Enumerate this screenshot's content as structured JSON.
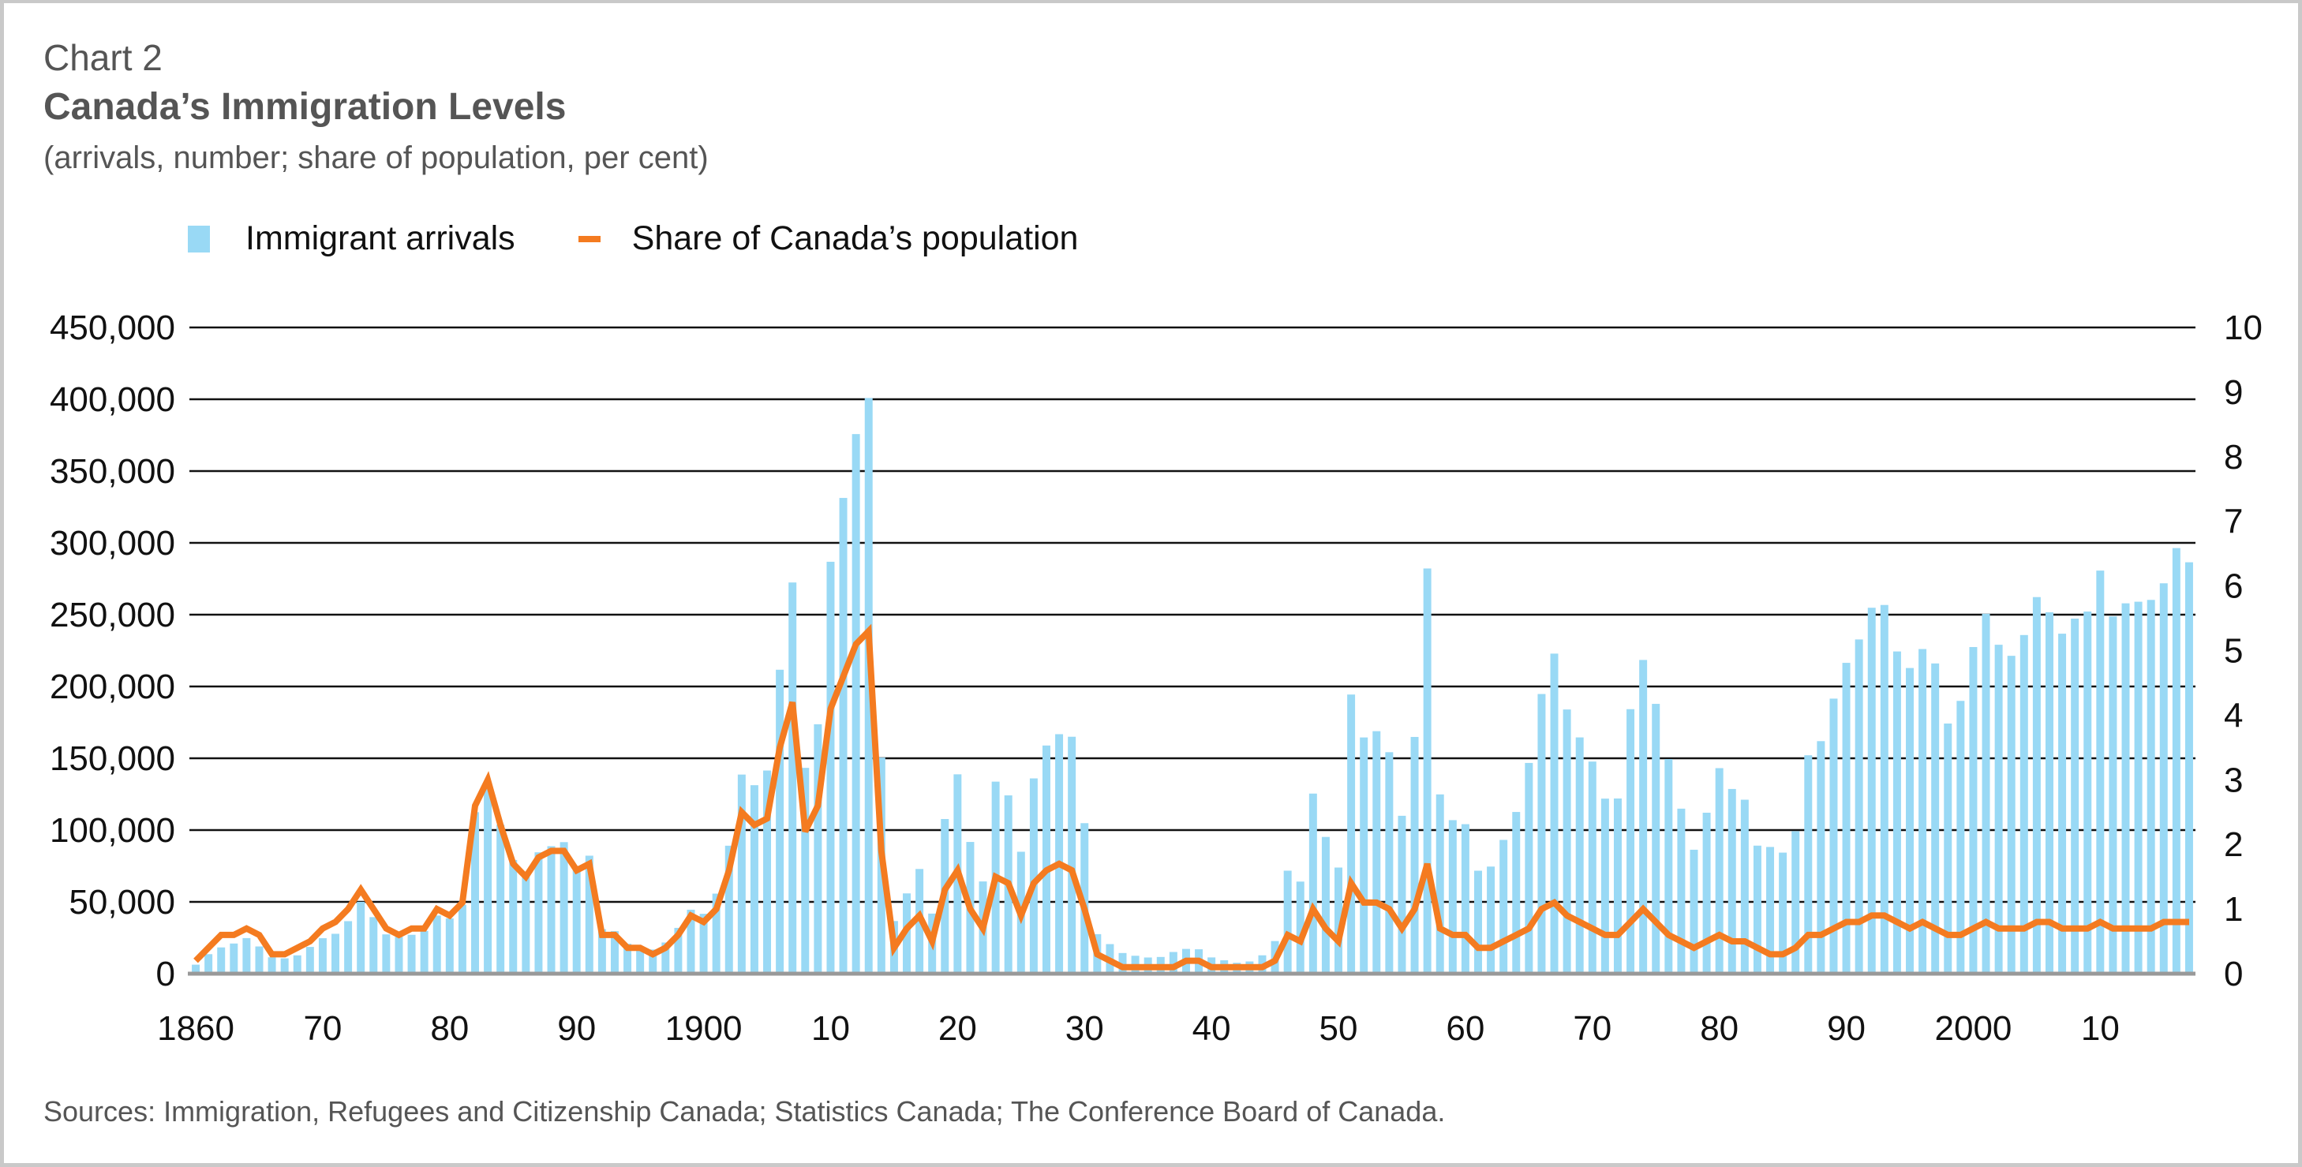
{
  "header": {
    "chart_number": "Chart 2",
    "title": "Canada’s Immigration Levels",
    "subtitle": "(arrivals, number; share of population, per cent)"
  },
  "legend": {
    "bars_label": "Immigrant arrivals",
    "line_label": "Share of Canada’s population"
  },
  "footer": {
    "sources": "Sources: Immigration, Refugees and Citizenship Canada; Statistics Canada; The Conference Board of Canada."
  },
  "colors": {
    "bars": "#99d9f5",
    "line": "#f47b20",
    "gridline": "#111111",
    "baseline": "#999999",
    "title_text": "#555555"
  },
  "chart_data": {
    "type": "bar",
    "title": "Canada’s Immigration Levels",
    "subtitle": "(arrivals, number; share of population, per cent)",
    "xlabel": "",
    "ylabel": "arrivals, number",
    "y2label": "share of population, per cent",
    "ylim": [
      0,
      450000
    ],
    "y2lim": [
      0,
      10
    ],
    "grid": true,
    "legend_position": "top-left",
    "y_ticks": [
      "0",
      "50,000",
      "100,000",
      "150,000",
      "200,000",
      "250,000",
      "300,000",
      "350,000",
      "400,000",
      "450,000"
    ],
    "y_tick_values": [
      0,
      50000,
      100000,
      150000,
      200000,
      250000,
      300000,
      350000,
      400000,
      450000
    ],
    "y2_ticks": [
      "0",
      "1",
      "2",
      "3",
      "4",
      "5",
      "6",
      "7",
      "8",
      "9",
      "10"
    ],
    "x_tick_labels": [
      {
        "year": 1860,
        "label": "1860"
      },
      {
        "year": 1870,
        "label": "70"
      },
      {
        "year": 1880,
        "label": "80"
      },
      {
        "year": 1890,
        "label": "90"
      },
      {
        "year": 1900,
        "label": "1900"
      },
      {
        "year": 1910,
        "label": "10"
      },
      {
        "year": 1920,
        "label": "20"
      },
      {
        "year": 1930,
        "label": "30"
      },
      {
        "year": 1940,
        "label": "40"
      },
      {
        "year": 1950,
        "label": "50"
      },
      {
        "year": 1960,
        "label": "60"
      },
      {
        "year": 1970,
        "label": "70"
      },
      {
        "year": 1980,
        "label": "80"
      },
      {
        "year": 1990,
        "label": "90"
      },
      {
        "year": 2000,
        "label": "2000"
      },
      {
        "year": 2010,
        "label": "10"
      }
    ],
    "x_start": 1860,
    "series": [
      {
        "name": "Immigrant arrivals",
        "type": "bar",
        "axis": "left",
        "values": [
          6276,
          13589,
          18294,
          21000,
          24779,
          18958,
          11427,
          10666,
          12765,
          18630,
          24706,
          27773,
          36578,
          50050,
          39373,
          27382,
          25633,
          27082,
          29807,
          40492,
          38505,
          47991,
          112458,
          133624,
          103824,
          79169,
          69152,
          84526,
          88766,
          91600,
          75067,
          82165,
          30996,
          29633,
          20829,
          18790,
          16835,
          21716,
          31900,
          44543,
          41681,
          55747,
          89102,
          138660,
          131252,
          141465,
          211653,
          272409,
          143326,
          173694,
          286839,
          331288,
          375756,
          400870,
          150484,
          36665,
          55914,
          72910,
          41845,
          107698,
          138824,
          91728,
          64224,
          133729,
          124164,
          84907,
          135982,
          158886,
          166783,
          164993,
          104806,
          27530,
          20591,
          14382,
          12476,
          11277,
          11643,
          15101,
          17244,
          16994,
          11324,
          9329,
          7576,
          8504,
          12801,
          22722,
          71719,
          64127,
          125414,
          95217,
          73912,
          194391,
          164498,
          168868,
          154227,
          109946,
          164857,
          282164,
          124851,
          106928,
          104111,
          71698,
          74586,
          93151,
          112606,
          146758,
          194743,
          222876,
          183974,
          164531,
          147713,
          121900,
          122006,
          184200,
          218465,
          187881,
          149429,
          114914,
          86313,
          112093,
          143117,
          128618,
          121147,
          89157,
          88239,
          84302,
          99219,
          152098,
          161929,
          191550,
          216452,
          232744,
          254817,
          256741,
          224384,
          212859,
          226073,
          216038,
          174200,
          189966,
          227458,
          250638,
          229048,
          221349,
          235823,
          262242,
          251640,
          236758,
          247247,
          252179,
          280691,
          248748,
          257903,
          259021,
          260282,
          271847,
          296379,
          286479
        ]
      },
      {
        "name": "Share of Canada’s population",
        "type": "line",
        "axis": "right",
        "values": [
          0.2,
          0.4,
          0.6,
          0.6,
          0.7,
          0.6,
          0.3,
          0.3,
          0.4,
          0.5,
          0.7,
          0.8,
          1.0,
          1.3,
          1.0,
          0.7,
          0.6,
          0.7,
          0.7,
          1.0,
          0.9,
          1.1,
          2.6,
          3.0,
          2.3,
          1.7,
          1.5,
          1.8,
          1.9,
          1.9,
          1.6,
          1.7,
          0.6,
          0.6,
          0.4,
          0.4,
          0.3,
          0.4,
          0.6,
          0.9,
          0.8,
          1.0,
          1.6,
          2.5,
          2.3,
          2.4,
          3.5,
          4.2,
          2.2,
          2.6,
          4.1,
          4.6,
          5.1,
          5.3,
          1.9,
          0.4,
          0.7,
          0.9,
          0.5,
          1.3,
          1.6,
          1.0,
          0.7,
          1.5,
          1.4,
          0.9,
          1.4,
          1.6,
          1.7,
          1.6,
          1.0,
          0.3,
          0.2,
          0.1,
          0.1,
          0.1,
          0.1,
          0.1,
          0.2,
          0.2,
          0.1,
          0.1,
          0.1,
          0.1,
          0.1,
          0.2,
          0.6,
          0.5,
          1.0,
          0.7,
          0.5,
          1.4,
          1.1,
          1.1,
          1.0,
          0.7,
          1.0,
          1.7,
          0.7,
          0.6,
          0.6,
          0.4,
          0.4,
          0.5,
          0.6,
          0.7,
          1.0,
          1.1,
          0.9,
          0.8,
          0.7,
          0.6,
          0.6,
          0.8,
          1.0,
          0.8,
          0.6,
          0.5,
          0.4,
          0.5,
          0.6,
          0.5,
          0.5,
          0.4,
          0.3,
          0.3,
          0.4,
          0.6,
          0.6,
          0.7,
          0.8,
          0.8,
          0.9,
          0.9,
          0.8,
          0.7,
          0.8,
          0.7,
          0.6,
          0.6,
          0.7,
          0.8,
          0.7,
          0.7,
          0.7,
          0.8,
          0.8,
          0.7,
          0.7,
          0.7,
          0.8,
          0.7,
          0.7,
          0.7,
          0.7,
          0.8,
          0.8,
          0.8
        ]
      }
    ]
  }
}
